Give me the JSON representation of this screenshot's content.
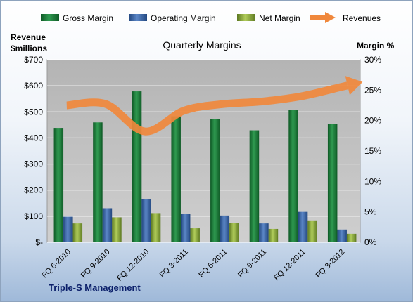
{
  "chart_data": {
    "type": "bar",
    "title": "Quarterly Margins",
    "ylabel_left_line1": "Revenue",
    "ylabel_left_line2": "$millions",
    "ylabel_right": "Margin  %",
    "footer": "Triple-S Management",
    "categories": [
      "FQ 6-2010",
      "FQ 9-2010",
      "FQ 12-2010",
      "FQ 3-2011",
      "FQ 6-2011",
      "FQ 9-2011",
      "FQ 12-2011",
      "FQ 3-2012"
    ],
    "left_axis": {
      "min": 0,
      "max": 700,
      "ticks": [
        0,
        100,
        200,
        300,
        400,
        500,
        600,
        700
      ],
      "tick_labels": [
        "$-",
        "$100",
        "$200",
        "$300",
        "$400",
        "$500",
        "$600",
        "$700"
      ]
    },
    "right_axis": {
      "min": 0,
      "max": 30,
      "ticks": [
        0,
        5,
        10,
        15,
        20,
        25,
        30
      ],
      "tick_labels": [
        "0%",
        "5%",
        "10%",
        "15%",
        "20%",
        "25%",
        "30%"
      ]
    },
    "series": [
      {
        "name": "Gross Margin",
        "axis": "right",
        "color": "#1a7a3a",
        "values": [
          18.8,
          19.7,
          24.8,
          20.7,
          20.3,
          18.4,
          21.7,
          19.5
        ]
      },
      {
        "name": "Operating Margin",
        "axis": "right",
        "color": "#3a66a8",
        "values": [
          4.2,
          5.6,
          7.1,
          4.7,
          4.4,
          3.1,
          5.0,
          2.1
        ]
      },
      {
        "name": "Net Margin",
        "axis": "right",
        "color": "#8fae3c",
        "values": [
          3.1,
          4.1,
          4.8,
          2.3,
          3.2,
          2.2,
          3.6,
          1.4
        ]
      },
      {
        "name": "Revenues",
        "axis": "left",
        "type": "line",
        "color": "#f0883c",
        "values": [
          525,
          530,
          425,
          505,
          530,
          540,
          560,
          595
        ]
      }
    ],
    "grid": true,
    "legend_position": "top"
  }
}
